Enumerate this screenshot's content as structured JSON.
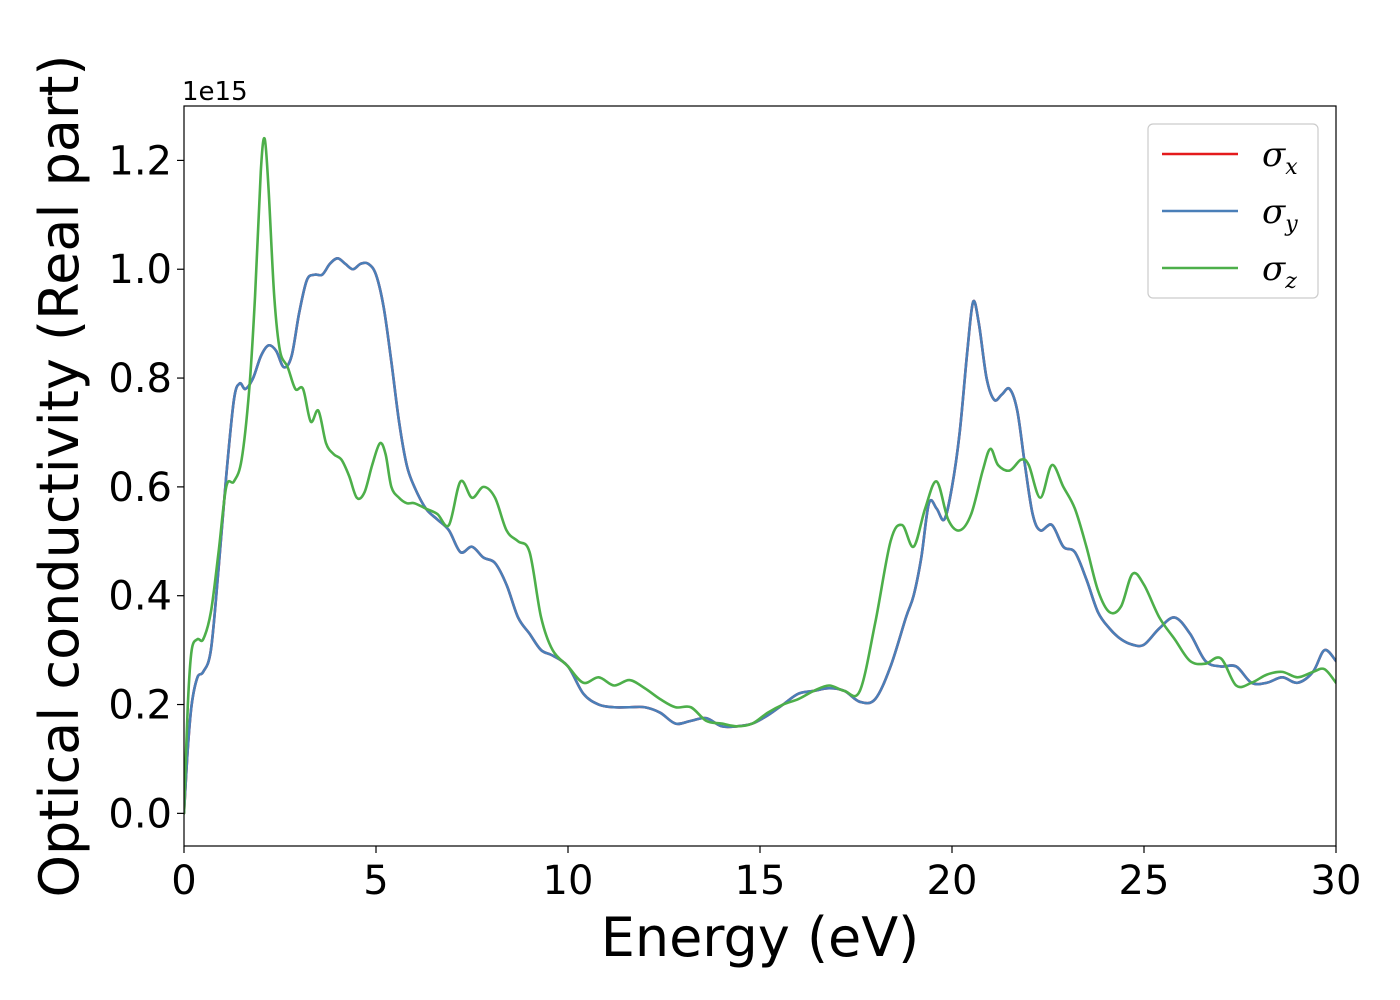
{
  "chart_data": {
    "type": "line",
    "xlabel": "Energy (eV)",
    "ylabel": "Optical conductivity (Real part)",
    "y_offset_label": "1e15",
    "xlim": [
      0,
      30
    ],
    "ylim": [
      -0.06,
      1.3
    ],
    "x_ticks": [
      0,
      5,
      10,
      15,
      20,
      25,
      30
    ],
    "x_tick_labels": [
      "0",
      "5",
      "10",
      "15",
      "20",
      "25",
      "30"
    ],
    "y_ticks": [
      0.0,
      0.2,
      0.4,
      0.6,
      0.8,
      1.0,
      1.2
    ],
    "y_tick_labels": [
      "0.0",
      "0.2",
      "0.4",
      "0.6",
      "0.8",
      "1.0",
      "1.2"
    ],
    "grid": false,
    "legend_position": "top-right",
    "series": [
      {
        "name": "σx",
        "symbol": "σ",
        "subscript": "x",
        "color": "#e41a1c",
        "x": [
          0,
          0.1,
          0.2,
          0.35,
          0.5,
          0.7,
          0.9,
          1.1,
          1.3,
          1.45,
          1.6,
          1.8,
          2.0,
          2.2,
          2.4,
          2.6,
          2.8,
          3.0,
          3.2,
          3.4,
          3.6,
          3.8,
          4.0,
          4.2,
          4.4,
          4.6,
          4.8,
          5.0,
          5.2,
          5.4,
          5.6,
          5.8,
          6.0,
          6.3,
          6.6,
          6.9,
          7.2,
          7.5,
          7.8,
          8.1,
          8.4,
          8.7,
          9.0,
          9.3,
          9.6,
          10.0,
          10.4,
          10.8,
          11.2,
          11.6,
          12.0,
          12.4,
          12.8,
          13.2,
          13.6,
          14.0,
          14.4,
          14.8,
          15.2,
          15.6,
          16.0,
          16.4,
          16.8,
          17.2,
          17.6,
          18.0,
          18.4,
          18.8,
          19.0,
          19.2,
          19.4,
          19.6,
          19.8,
          20.0,
          20.2,
          20.4,
          20.55,
          20.7,
          20.9,
          21.1,
          21.3,
          21.5,
          21.7,
          21.9,
          22.1,
          22.3,
          22.6,
          22.9,
          23.2,
          23.5,
          23.8,
          24.1,
          24.4,
          24.7,
          25.0,
          25.4,
          25.8,
          26.2,
          26.6,
          27.0,
          27.4,
          27.8,
          28.2,
          28.6,
          29.0,
          29.4,
          29.7,
          30.0
        ],
        "y": [
          0.0,
          0.12,
          0.2,
          0.25,
          0.26,
          0.3,
          0.45,
          0.62,
          0.76,
          0.79,
          0.78,
          0.8,
          0.84,
          0.86,
          0.85,
          0.82,
          0.84,
          0.92,
          0.98,
          0.99,
          0.99,
          1.01,
          1.02,
          1.01,
          1.0,
          1.01,
          1.01,
          0.99,
          0.93,
          0.83,
          0.72,
          0.64,
          0.6,
          0.56,
          0.54,
          0.52,
          0.48,
          0.49,
          0.47,
          0.46,
          0.42,
          0.36,
          0.33,
          0.3,
          0.29,
          0.27,
          0.22,
          0.2,
          0.195,
          0.195,
          0.195,
          0.185,
          0.165,
          0.17,
          0.175,
          0.16,
          0.16,
          0.165,
          0.18,
          0.2,
          0.22,
          0.225,
          0.23,
          0.225,
          0.205,
          0.21,
          0.27,
          0.36,
          0.4,
          0.47,
          0.57,
          0.56,
          0.54,
          0.6,
          0.7,
          0.85,
          0.94,
          0.9,
          0.8,
          0.76,
          0.77,
          0.78,
          0.74,
          0.64,
          0.55,
          0.52,
          0.53,
          0.49,
          0.48,
          0.43,
          0.37,
          0.34,
          0.32,
          0.31,
          0.31,
          0.34,
          0.36,
          0.33,
          0.28,
          0.27,
          0.27,
          0.24,
          0.24,
          0.25,
          0.24,
          0.26,
          0.3,
          0.28
        ]
      },
      {
        "name": "σy",
        "symbol": "σ",
        "subscript": "y",
        "color": "#4a7fb8",
        "x": [
          0,
          0.1,
          0.2,
          0.35,
          0.5,
          0.7,
          0.9,
          1.1,
          1.3,
          1.45,
          1.6,
          1.8,
          2.0,
          2.2,
          2.4,
          2.6,
          2.8,
          3.0,
          3.2,
          3.4,
          3.6,
          3.8,
          4.0,
          4.2,
          4.4,
          4.6,
          4.8,
          5.0,
          5.2,
          5.4,
          5.6,
          5.8,
          6.0,
          6.3,
          6.6,
          6.9,
          7.2,
          7.5,
          7.8,
          8.1,
          8.4,
          8.7,
          9.0,
          9.3,
          9.6,
          10.0,
          10.4,
          10.8,
          11.2,
          11.6,
          12.0,
          12.4,
          12.8,
          13.2,
          13.6,
          14.0,
          14.4,
          14.8,
          15.2,
          15.6,
          16.0,
          16.4,
          16.8,
          17.2,
          17.6,
          18.0,
          18.4,
          18.8,
          19.0,
          19.2,
          19.4,
          19.6,
          19.8,
          20.0,
          20.2,
          20.4,
          20.55,
          20.7,
          20.9,
          21.1,
          21.3,
          21.5,
          21.7,
          21.9,
          22.1,
          22.3,
          22.6,
          22.9,
          23.2,
          23.5,
          23.8,
          24.1,
          24.4,
          24.7,
          25.0,
          25.4,
          25.8,
          26.2,
          26.6,
          27.0,
          27.4,
          27.8,
          28.2,
          28.6,
          29.0,
          29.4,
          29.7,
          30.0
        ],
        "y": [
          0.0,
          0.12,
          0.2,
          0.25,
          0.26,
          0.3,
          0.45,
          0.62,
          0.76,
          0.79,
          0.78,
          0.8,
          0.84,
          0.86,
          0.85,
          0.82,
          0.84,
          0.92,
          0.98,
          0.99,
          0.99,
          1.01,
          1.02,
          1.01,
          1.0,
          1.01,
          1.01,
          0.99,
          0.93,
          0.83,
          0.72,
          0.64,
          0.6,
          0.56,
          0.54,
          0.52,
          0.48,
          0.49,
          0.47,
          0.46,
          0.42,
          0.36,
          0.33,
          0.3,
          0.29,
          0.27,
          0.22,
          0.2,
          0.195,
          0.195,
          0.195,
          0.185,
          0.165,
          0.17,
          0.175,
          0.16,
          0.16,
          0.165,
          0.18,
          0.2,
          0.22,
          0.225,
          0.23,
          0.225,
          0.205,
          0.21,
          0.27,
          0.36,
          0.4,
          0.47,
          0.57,
          0.56,
          0.54,
          0.6,
          0.7,
          0.85,
          0.94,
          0.9,
          0.8,
          0.76,
          0.77,
          0.78,
          0.74,
          0.64,
          0.55,
          0.52,
          0.53,
          0.49,
          0.48,
          0.43,
          0.37,
          0.34,
          0.32,
          0.31,
          0.31,
          0.34,
          0.36,
          0.33,
          0.28,
          0.27,
          0.27,
          0.24,
          0.24,
          0.25,
          0.24,
          0.26,
          0.3,
          0.28
        ]
      },
      {
        "name": "σz",
        "symbol": "σ",
        "subscript": "z",
        "color": "#4daf4a",
        "x": [
          0,
          0.1,
          0.2,
          0.35,
          0.5,
          0.7,
          0.9,
          1.1,
          1.3,
          1.5,
          1.7,
          1.85,
          2.0,
          2.1,
          2.2,
          2.35,
          2.5,
          2.7,
          2.9,
          3.1,
          3.3,
          3.5,
          3.7,
          3.9,
          4.1,
          4.3,
          4.5,
          4.7,
          4.9,
          5.1,
          5.25,
          5.4,
          5.6,
          5.8,
          6.0,
          6.3,
          6.6,
          6.9,
          7.2,
          7.5,
          7.8,
          8.1,
          8.4,
          8.7,
          9.0,
          9.3,
          9.6,
          10.0,
          10.4,
          10.8,
          11.2,
          11.6,
          12.0,
          12.4,
          12.8,
          13.2,
          13.6,
          14.0,
          14.4,
          14.8,
          15.2,
          15.6,
          16.0,
          16.4,
          16.8,
          17.2,
          17.6,
          18.0,
          18.4,
          18.7,
          19.0,
          19.3,
          19.6,
          19.9,
          20.2,
          20.5,
          20.8,
          21.0,
          21.2,
          21.5,
          21.8,
          22.0,
          22.3,
          22.6,
          22.9,
          23.2,
          23.5,
          23.8,
          24.1,
          24.4,
          24.7,
          25.0,
          25.4,
          25.8,
          26.2,
          26.6,
          27.0,
          27.4,
          27.8,
          28.2,
          28.6,
          29.0,
          29.4,
          29.7,
          30.0
        ],
        "y": [
          0.0,
          0.2,
          0.3,
          0.32,
          0.32,
          0.37,
          0.48,
          0.6,
          0.61,
          0.65,
          0.78,
          0.95,
          1.18,
          1.24,
          1.15,
          0.95,
          0.85,
          0.82,
          0.78,
          0.78,
          0.72,
          0.74,
          0.68,
          0.66,
          0.65,
          0.62,
          0.58,
          0.59,
          0.64,
          0.68,
          0.66,
          0.6,
          0.58,
          0.57,
          0.57,
          0.56,
          0.55,
          0.53,
          0.61,
          0.58,
          0.6,
          0.58,
          0.52,
          0.5,
          0.48,
          0.36,
          0.3,
          0.27,
          0.24,
          0.25,
          0.235,
          0.245,
          0.23,
          0.21,
          0.195,
          0.195,
          0.17,
          0.165,
          0.16,
          0.165,
          0.185,
          0.2,
          0.21,
          0.225,
          0.235,
          0.225,
          0.225,
          0.35,
          0.5,
          0.53,
          0.49,
          0.56,
          0.61,
          0.54,
          0.52,
          0.55,
          0.63,
          0.67,
          0.64,
          0.63,
          0.65,
          0.64,
          0.58,
          0.64,
          0.6,
          0.56,
          0.49,
          0.41,
          0.37,
          0.38,
          0.44,
          0.42,
          0.36,
          0.32,
          0.28,
          0.275,
          0.285,
          0.235,
          0.24,
          0.255,
          0.26,
          0.25,
          0.26,
          0.265,
          0.24
        ]
      }
    ]
  }
}
